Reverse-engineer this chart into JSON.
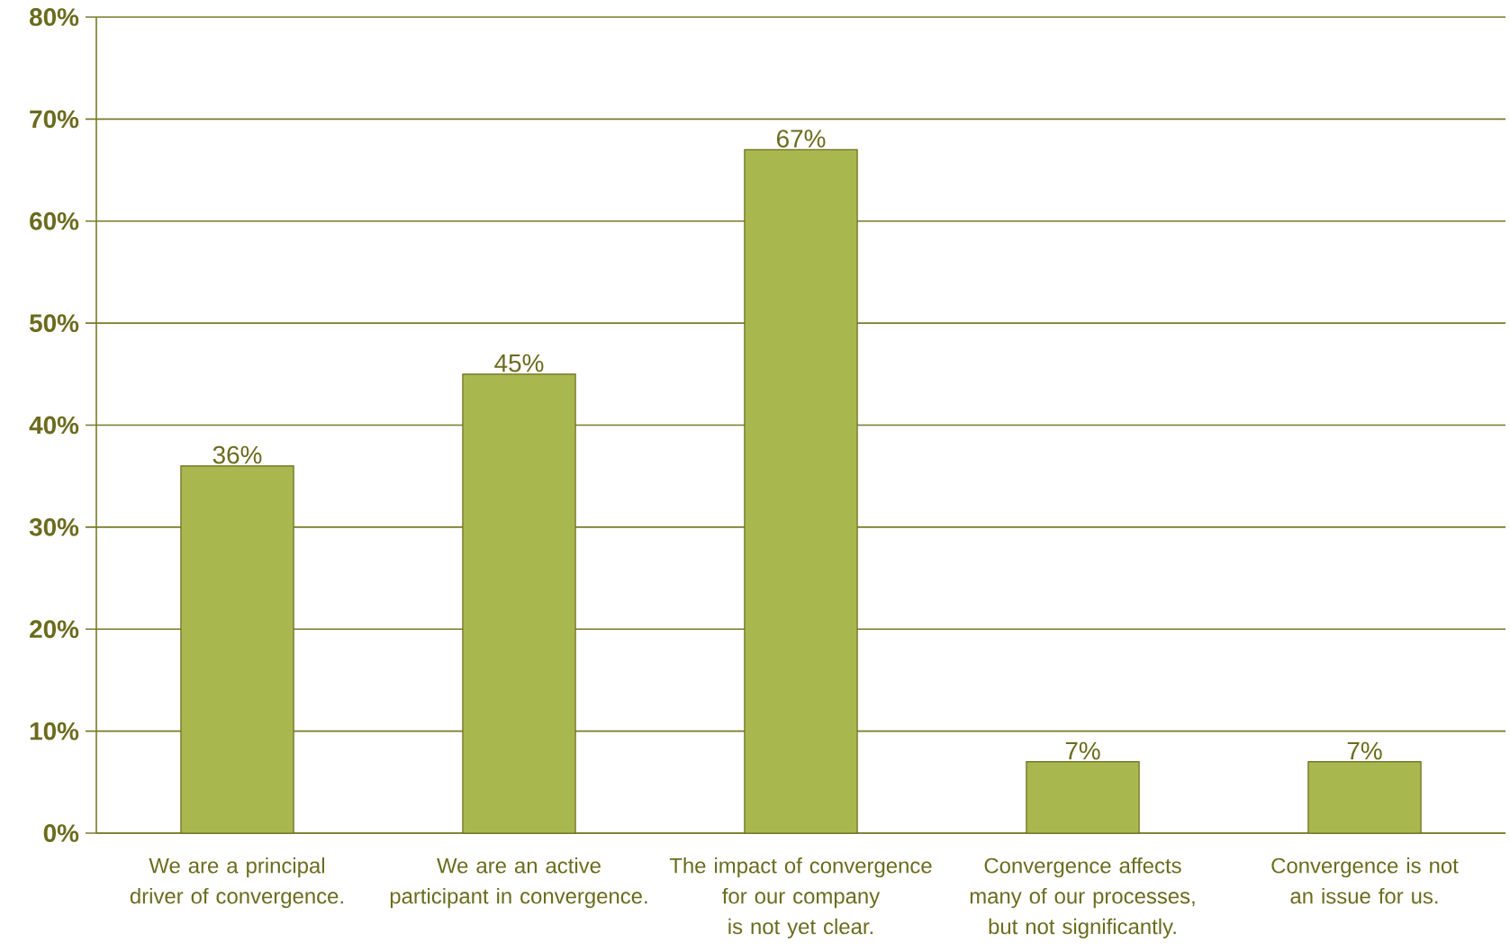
{
  "chart_data": {
    "type": "bar",
    "categories": [
      "We are a principal driver of convergence.",
      "We are an active participant in convergence.",
      "The impact of convergence for our company is not yet clear.",
      "Convergence affects many of our processes, but not significantly.",
      "Convergence is not an issue for us."
    ],
    "values": [
      36,
      45,
      67,
      7,
      7
    ],
    "value_labels": [
      "36%",
      "45%",
      "67%",
      "7%",
      "7%"
    ],
    "color": "#a9b84e",
    "ylim": [
      0,
      80
    ],
    "yticks": [
      {
        "value": 0,
        "label": "0%"
      },
      {
        "value": 10,
        "label": "10%"
      },
      {
        "value": 20,
        "label": "20%"
      },
      {
        "value": 30,
        "label": "30%"
      },
      {
        "value": 40,
        "label": "40%"
      },
      {
        "value": 50,
        "label": "50%"
      },
      {
        "value": 60,
        "label": "60%"
      },
      {
        "value": 70,
        "label": "70%"
      },
      {
        "value": 80,
        "label": "80%"
      }
    ],
    "grid": "y"
  }
}
